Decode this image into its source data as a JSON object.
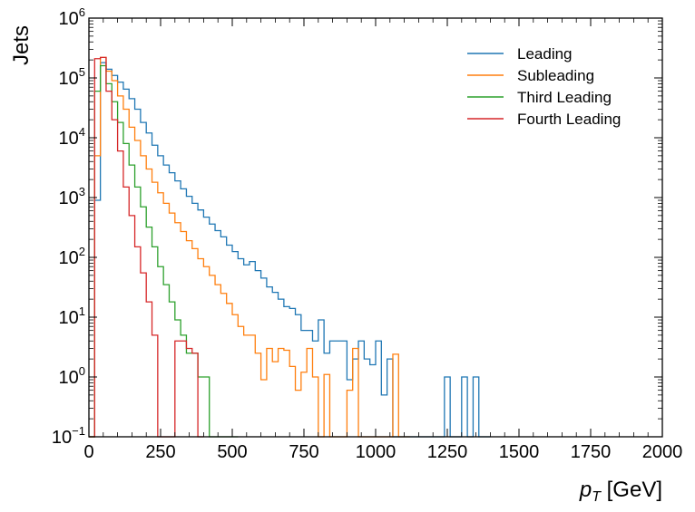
{
  "chart_data": {
    "type": "line",
    "title": "",
    "xlabel": {
      "symbol": "p",
      "subscript": "T",
      "unit": " [GeV]"
    },
    "ylabel": "Jets",
    "xlim": [
      0,
      2000
    ],
    "ylim": [
      0.1,
      1000000
    ],
    "yscale": "log",
    "grid": false,
    "legend_position": "top-right",
    "x_ticks": [
      0,
      250,
      500,
      750,
      1000,
      1250,
      1500,
      1750,
      2000
    ],
    "y_tick_exponents": [
      -1,
      0,
      1,
      2,
      3,
      4,
      5,
      6
    ],
    "bin_width": 20,
    "series": [
      {
        "name": "Leading",
        "color": "#1f77b4",
        "values": [
          0,
          900,
          180000,
          140000,
          110000,
          85000,
          65000,
          45000,
          30000,
          18000,
          12000,
          7500,
          5000,
          3500,
          2600,
          1900,
          1400,
          1050,
          800,
          620,
          470,
          360,
          280,
          220,
          160,
          125,
          95,
          75,
          85,
          60,
          45,
          32,
          26,
          20,
          15,
          14,
          11,
          6,
          6,
          4,
          9,
          2.5,
          4,
          4,
          4,
          0.9,
          2,
          4,
          2,
          1.6,
          4,
          0.5,
          2,
          0,
          0,
          0,
          0,
          0,
          0,
          0,
          0,
          0,
          1,
          0,
          0,
          1,
          0,
          1,
          0,
          0
        ]
      },
      {
        "name": "Subleading",
        "color": "#ff7f0e",
        "values": [
          0,
          5000,
          220000,
          130000,
          90000,
          50000,
          30000,
          15000,
          9000,
          5000,
          3000,
          1800,
          1200,
          800,
          550,
          380,
          270,
          190,
          140,
          95,
          70,
          50,
          35,
          25,
          17,
          11,
          7,
          5,
          5,
          2.5,
          0.9,
          3,
          1.8,
          3,
          2.8,
          1.5,
          0.6,
          1.2,
          3,
          1,
          0,
          1.1,
          0,
          0,
          0,
          0.6,
          3,
          0,
          0,
          0,
          0,
          0,
          0,
          2.4,
          0,
          0
        ]
      },
      {
        "name": "Third Leading",
        "color": "#2ca02c",
        "values": [
          0,
          60000,
          160000,
          80000,
          40000,
          18000,
          8000,
          3500,
          1500,
          700,
          320,
          150,
          70,
          35,
          18,
          9,
          5,
          2.5,
          2.5,
          1,
          1,
          0,
          0,
          0,
          0,
          0
        ]
      },
      {
        "name": "Fourth Leading",
        "color": "#d62728",
        "values": [
          0,
          210000,
          220000,
          60000,
          20000,
          6000,
          1500,
          500,
          150,
          55,
          18,
          5,
          0,
          0,
          0,
          4,
          4,
          3,
          2.5,
          0
        ]
      }
    ]
  }
}
